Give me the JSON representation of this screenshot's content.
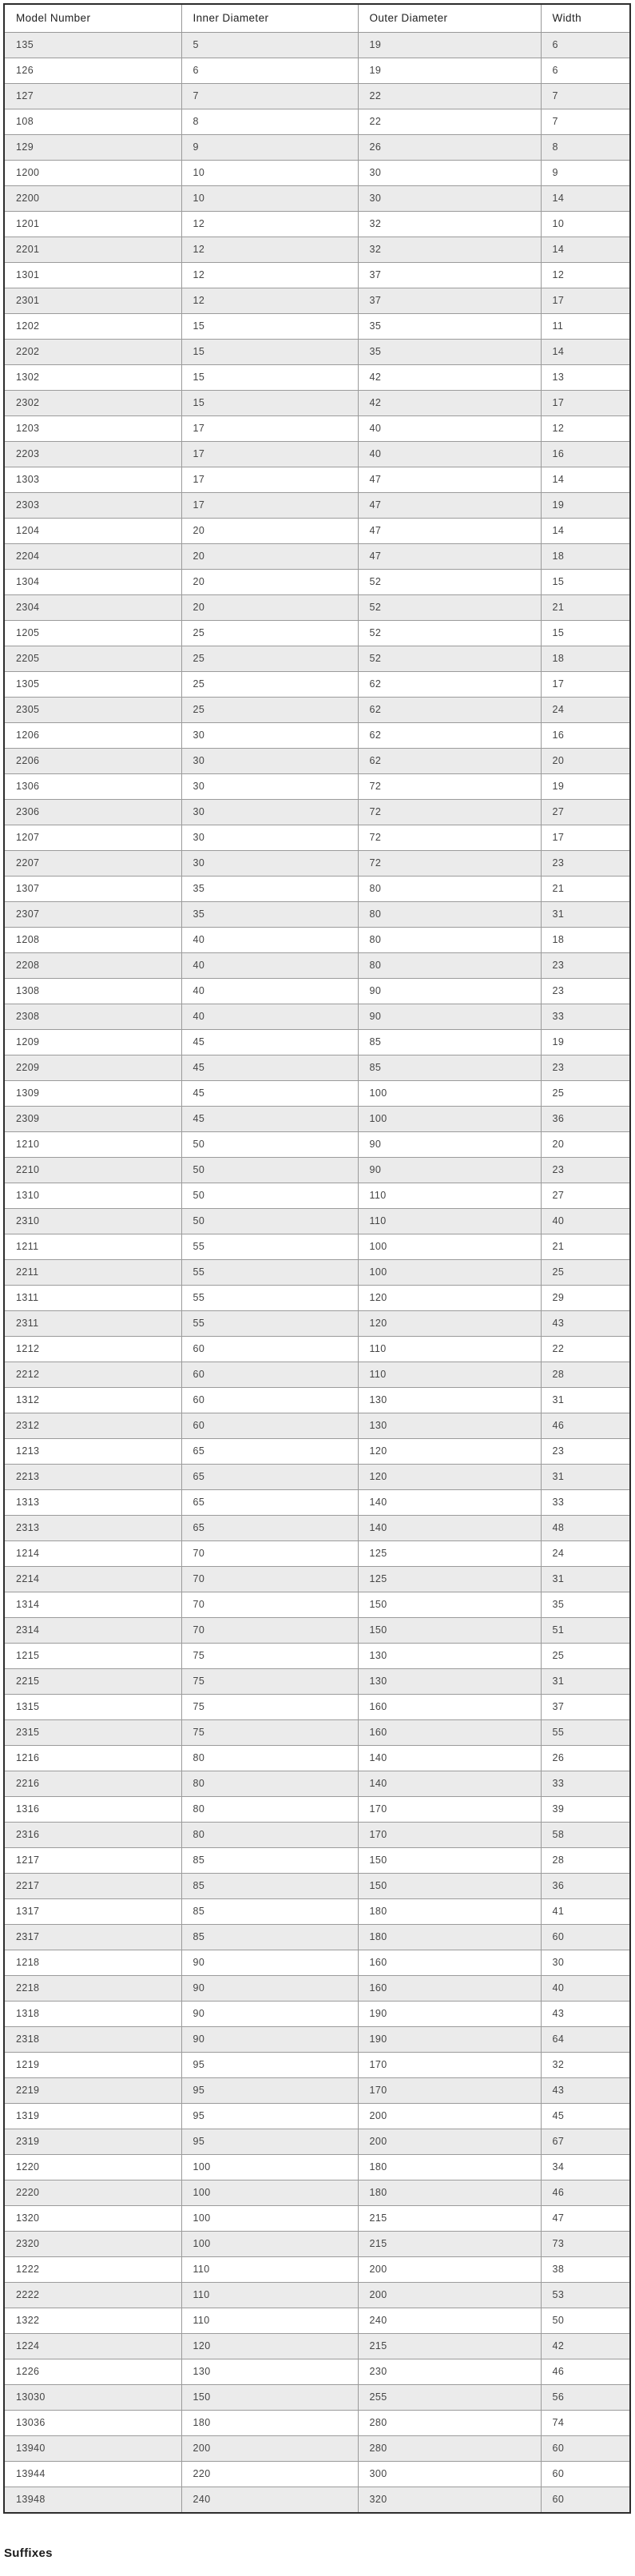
{
  "table": {
    "columns": [
      "Model Number",
      "Inner Diameter",
      "Outer Diameter",
      "Width"
    ],
    "rows": [
      [
        "135",
        "5",
        "19",
        "6"
      ],
      [
        "126",
        "6",
        "19",
        "6"
      ],
      [
        "127",
        "7",
        "22",
        "7"
      ],
      [
        "108",
        "8",
        "22",
        "7"
      ],
      [
        "129",
        "9",
        "26",
        "8"
      ],
      [
        "1200",
        "10",
        "30",
        "9"
      ],
      [
        "2200",
        "10",
        "30",
        "14"
      ],
      [
        "1201",
        "12",
        "32",
        "10"
      ],
      [
        "2201",
        "12",
        "32",
        "14"
      ],
      [
        "1301",
        "12",
        "37",
        "12"
      ],
      [
        "2301",
        "12",
        "37",
        "17"
      ],
      [
        "1202",
        "15",
        "35",
        "11"
      ],
      [
        "2202",
        "15",
        "35",
        "14"
      ],
      [
        "1302",
        "15",
        "42",
        "13"
      ],
      [
        "2302",
        "15",
        "42",
        "17"
      ],
      [
        "1203",
        "17",
        "40",
        "12"
      ],
      [
        "2203",
        "17",
        "40",
        "16"
      ],
      [
        "1303",
        "17",
        "47",
        "14"
      ],
      [
        "2303",
        "17",
        "47",
        "19"
      ],
      [
        "1204",
        "20",
        "47",
        "14"
      ],
      [
        "2204",
        "20",
        "47",
        "18"
      ],
      [
        "1304",
        "20",
        "52",
        "15"
      ],
      [
        "2304",
        "20",
        "52",
        "21"
      ],
      [
        "1205",
        "25",
        "52",
        "15"
      ],
      [
        "2205",
        "25",
        "52",
        "18"
      ],
      [
        "1305",
        "25",
        "62",
        "17"
      ],
      [
        "2305",
        "25",
        "62",
        "24"
      ],
      [
        "1206",
        "30",
        "62",
        "16"
      ],
      [
        "2206",
        "30",
        "62",
        "20"
      ],
      [
        "1306",
        "30",
        "72",
        "19"
      ],
      [
        "2306",
        "30",
        "72",
        "27"
      ],
      [
        "1207",
        "30",
        "72",
        "17"
      ],
      [
        "2207",
        "30",
        "72",
        "23"
      ],
      [
        "1307",
        "35",
        "80",
        "21"
      ],
      [
        "2307",
        "35",
        "80",
        "31"
      ],
      [
        "1208",
        "40",
        "80",
        "18"
      ],
      [
        "2208",
        "40",
        "80",
        "23"
      ],
      [
        "1308",
        "40",
        "90",
        "23"
      ],
      [
        "2308",
        "40",
        "90",
        "33"
      ],
      [
        "1209",
        "45",
        "85",
        "19"
      ],
      [
        "2209",
        "45",
        "85",
        "23"
      ],
      [
        "1309",
        "45",
        "100",
        "25"
      ],
      [
        "2309",
        "45",
        "100",
        "36"
      ],
      [
        "1210",
        "50",
        "90",
        "20"
      ],
      [
        "2210",
        "50",
        "90",
        "23"
      ],
      [
        "1310",
        "50",
        "110",
        "27"
      ],
      [
        "2310",
        "50",
        "110",
        "40"
      ],
      [
        "1211",
        "55",
        "100",
        "21"
      ],
      [
        "2211",
        "55",
        "100",
        "25"
      ],
      [
        "1311",
        "55",
        "120",
        "29"
      ],
      [
        "2311",
        "55",
        "120",
        "43"
      ],
      [
        "1212",
        "60",
        "110",
        "22"
      ],
      [
        "2212",
        "60",
        "110",
        "28"
      ],
      [
        "1312",
        "60",
        "130",
        "31"
      ],
      [
        "2312",
        "60",
        "130",
        "46"
      ],
      [
        "1213",
        "65",
        "120",
        "23"
      ],
      [
        "2213",
        "65",
        "120",
        "31"
      ],
      [
        "1313",
        "65",
        "140",
        "33"
      ],
      [
        "2313",
        "65",
        "140",
        "48"
      ],
      [
        "1214",
        "70",
        "125",
        "24"
      ],
      [
        "2214",
        "70",
        "125",
        "31"
      ],
      [
        "1314",
        "70",
        "150",
        "35"
      ],
      [
        "2314",
        "70",
        "150",
        "51"
      ],
      [
        "1215",
        "75",
        "130",
        "25"
      ],
      [
        "2215",
        "75",
        "130",
        "31"
      ],
      [
        "1315",
        "75",
        "160",
        "37"
      ],
      [
        "2315",
        "75",
        "160",
        "55"
      ],
      [
        "1216",
        "80",
        "140",
        "26"
      ],
      [
        "2216",
        "80",
        "140",
        "33"
      ],
      [
        "1316",
        "80",
        "170",
        "39"
      ],
      [
        "2316",
        "80",
        "170",
        "58"
      ],
      [
        "1217",
        "85",
        "150",
        "28"
      ],
      [
        "2217",
        "85",
        "150",
        "36"
      ],
      [
        "1317",
        "85",
        "180",
        "41"
      ],
      [
        "2317",
        "85",
        "180",
        "60"
      ],
      [
        "1218",
        "90",
        "160",
        "30"
      ],
      [
        "2218",
        "90",
        "160",
        "40"
      ],
      [
        "1318",
        "90",
        "190",
        "43"
      ],
      [
        "2318",
        "90",
        "190",
        "64"
      ],
      [
        "1219",
        "95",
        "170",
        "32"
      ],
      [
        "2219",
        "95",
        "170",
        "43"
      ],
      [
        "1319",
        "95",
        "200",
        "45"
      ],
      [
        "2319",
        "95",
        "200",
        "67"
      ],
      [
        "1220",
        "100",
        "180",
        "34"
      ],
      [
        "2220",
        "100",
        "180",
        "46"
      ],
      [
        "1320",
        "100",
        "215",
        "47"
      ],
      [
        "2320",
        "100",
        "215",
        "73"
      ],
      [
        "1222",
        "110",
        "200",
        "38"
      ],
      [
        "2222",
        "110",
        "200",
        "53"
      ],
      [
        "1322",
        "110",
        "240",
        "50"
      ],
      [
        "1224",
        "120",
        "215",
        "42"
      ],
      [
        "1226",
        "130",
        "230",
        "46"
      ],
      [
        "13030",
        "150",
        "255",
        "56"
      ],
      [
        "13036",
        "180",
        "280",
        "74"
      ],
      [
        "13940",
        "200",
        "280",
        "60"
      ],
      [
        "13944",
        "220",
        "300",
        "60"
      ],
      [
        "13948",
        "240",
        "320",
        "60"
      ]
    ]
  },
  "footer": {
    "suffixes_heading": "Suffixes"
  },
  "colors": {
    "stripe_row": "#ebebeb",
    "outer_border": "#2d2d2d",
    "inner_border": "#9b9b9b",
    "header_text": "#222222",
    "cell_text": "#454545"
  }
}
